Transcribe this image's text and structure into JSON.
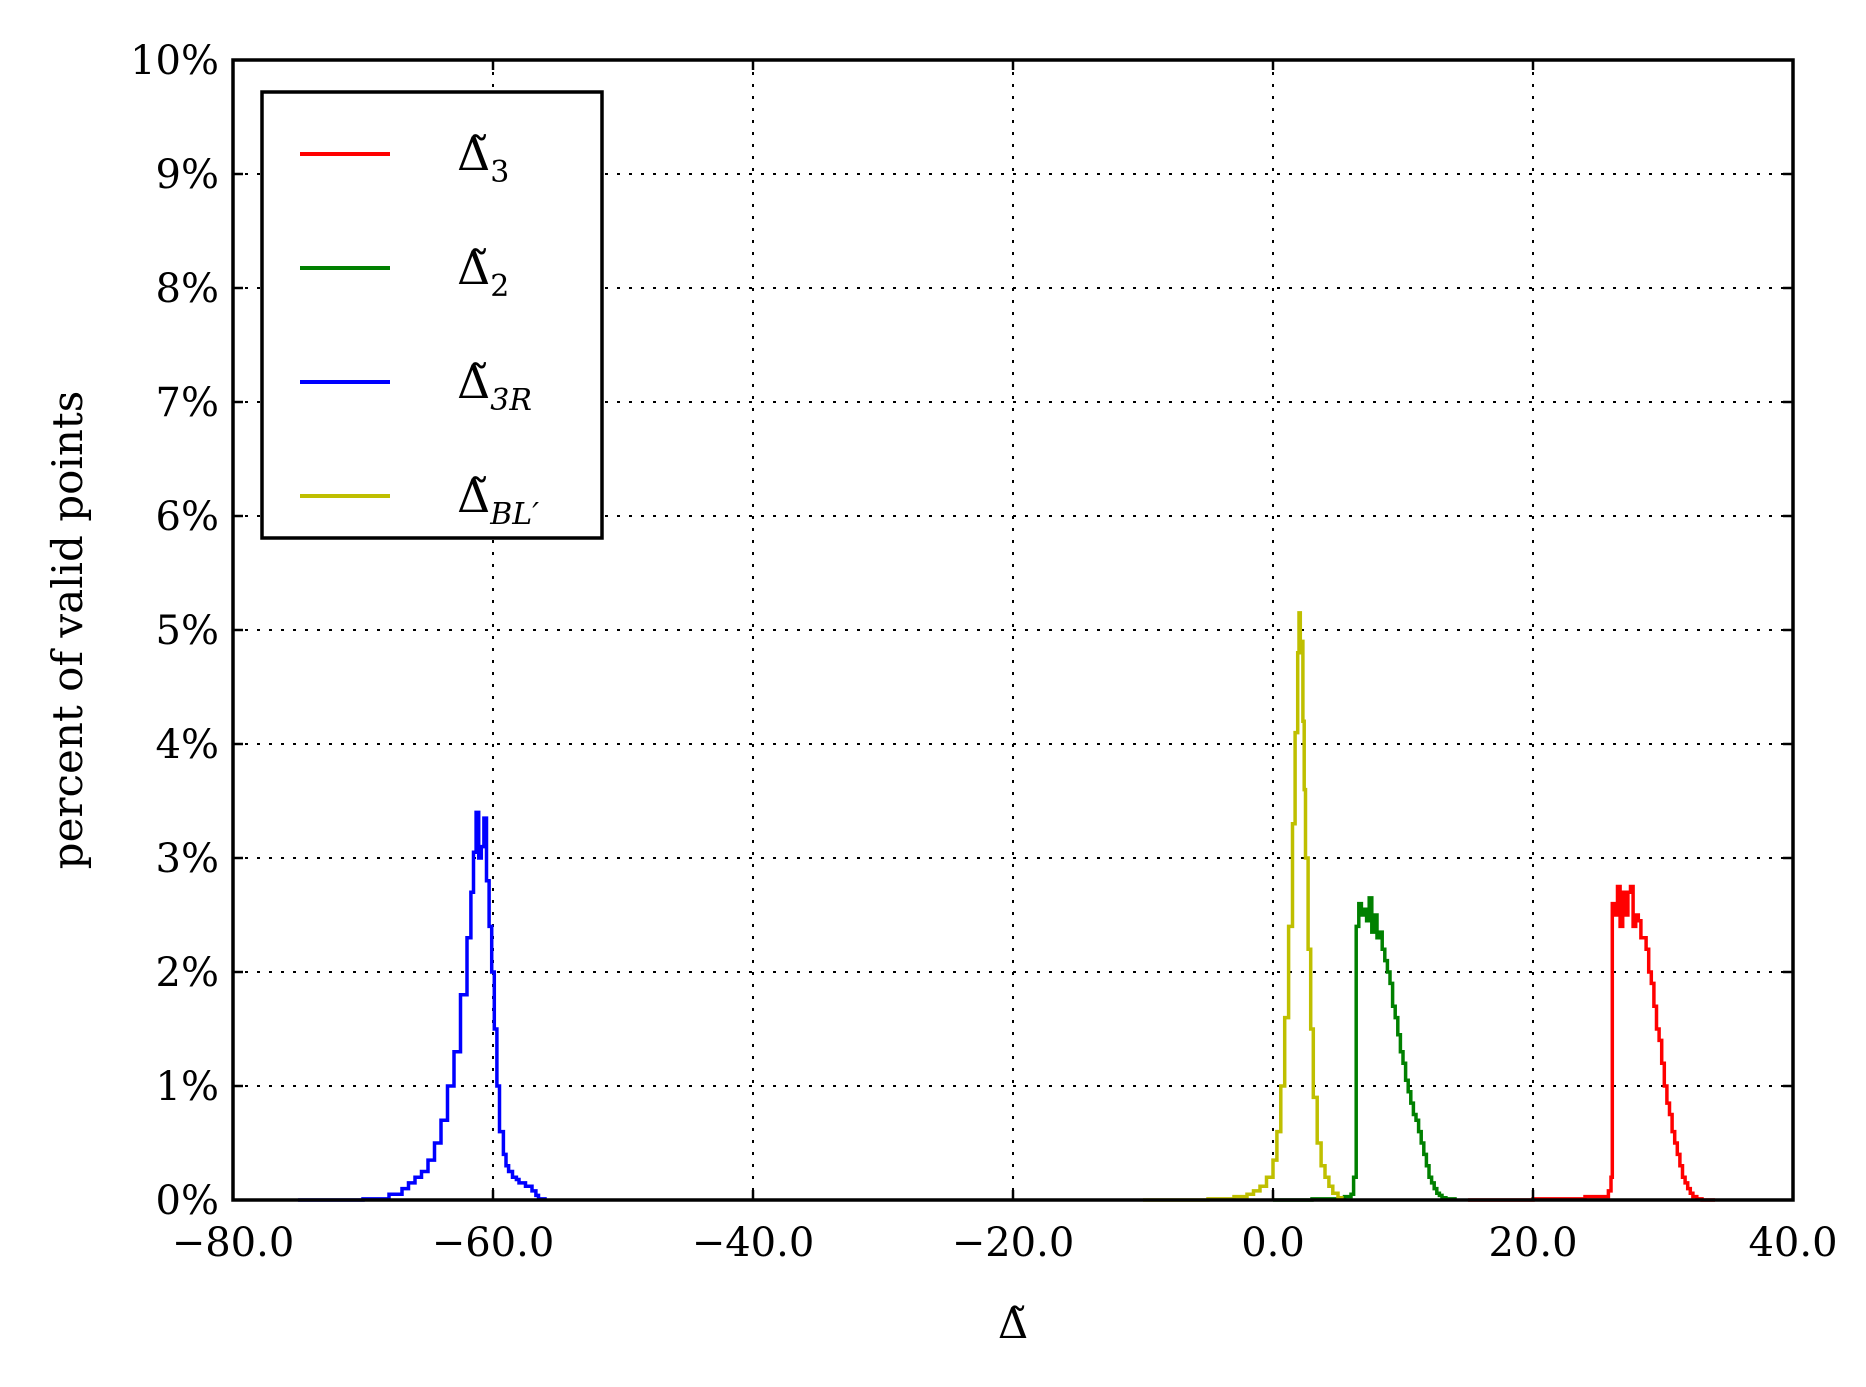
{
  "chart_data": {
    "type": "line",
    "xlabel": "Δ̃",
    "ylabel": "percent of valid points",
    "xlim": [
      -80,
      40
    ],
    "ylim": [
      0,
      10
    ],
    "x_ticks": [
      -80,
      -60,
      -40,
      -20,
      0,
      20,
      40
    ],
    "x_tick_labels": [
      "−80.0",
      "−60.0",
      "−40.0",
      "−20.0",
      "0.0",
      "20.0",
      "40.0"
    ],
    "y_ticks": [
      0,
      1,
      2,
      3,
      4,
      5,
      6,
      7,
      8,
      9,
      10
    ],
    "y_tick_labels": [
      "0%",
      "1%",
      "2%",
      "3%",
      "4%",
      "5%",
      "6%",
      "7%",
      "8%",
      "9%",
      "10%"
    ],
    "grid": true,
    "legend_position": "top-left",
    "series": [
      {
        "name": "Δ̃",
        "subscript": "3",
        "color": "#ff0000",
        "x": [
          15,
          20,
          24,
          25.8,
          26.0,
          26.1,
          26.3,
          26.5,
          26.7,
          26.9,
          27.1,
          27.3,
          27.5,
          27.7,
          27.9,
          28.1,
          28.3,
          28.5,
          28.7,
          28.9,
          29.1,
          29.3,
          29.5,
          29.7,
          29.9,
          30.1,
          30.3,
          30.5,
          30.7,
          30.9,
          31.1,
          31.3,
          31.5,
          31.7,
          31.9,
          32.1,
          32.3,
          32.6,
          33.0,
          34
        ],
        "y": [
          0.0,
          0.01,
          0.03,
          0.08,
          0.2,
          2.6,
          2.5,
          2.75,
          2.4,
          2.7,
          2.5,
          2.7,
          2.75,
          2.4,
          2.5,
          2.45,
          2.3,
          2.3,
          2.2,
          2.0,
          1.9,
          1.7,
          1.5,
          1.4,
          1.2,
          1.0,
          0.85,
          0.75,
          0.6,
          0.5,
          0.4,
          0.3,
          0.2,
          0.15,
          0.1,
          0.06,
          0.03,
          0.01,
          0.0,
          0.0
        ]
      },
      {
        "name": "Δ̃",
        "subscript": "2",
        "color": "#008000",
        "x": [
          0,
          3,
          5.5,
          6.0,
          6.2,
          6.4,
          6.6,
          6.8,
          7.0,
          7.2,
          7.4,
          7.6,
          7.8,
          8.0,
          8.2,
          8.4,
          8.6,
          8.8,
          9.0,
          9.2,
          9.4,
          9.6,
          9.8,
          10.0,
          10.2,
          10.4,
          10.6,
          10.8,
          11.0,
          11.2,
          11.4,
          11.6,
          11.8,
          12.0,
          12.2,
          12.4,
          12.6,
          12.8,
          13.0,
          13.3,
          14
        ],
        "y": [
          0.0,
          0.01,
          0.03,
          0.05,
          0.2,
          2.4,
          2.6,
          2.5,
          2.55,
          2.45,
          2.65,
          2.35,
          2.5,
          2.3,
          2.35,
          2.2,
          2.1,
          2.0,
          1.9,
          1.7,
          1.6,
          1.45,
          1.3,
          1.2,
          1.05,
          0.95,
          0.85,
          0.75,
          0.7,
          0.6,
          0.5,
          0.4,
          0.3,
          0.2,
          0.15,
          0.1,
          0.06,
          0.04,
          0.02,
          0.01,
          0.0
        ]
      },
      {
        "name": "Δ̃",
        "subscript": "3R",
        "color": "#0000ff",
        "x": [
          -75,
          -70,
          -68,
          -67,
          -66.5,
          -66,
          -65.5,
          -65,
          -64.5,
          -64,
          -63.5,
          -63,
          -62.5,
          -62,
          -61.7,
          -61.5,
          -61.3,
          -61.1,
          -60.9,
          -60.7,
          -60.5,
          -60.3,
          -60.1,
          -59.9,
          -59.7,
          -59.5,
          -59.2,
          -59,
          -58.8,
          -58.5,
          -58.2,
          -58,
          -57.5,
          -57,
          -56.7,
          -56.5,
          -56
        ],
        "y": [
          0.0,
          0.01,
          0.05,
          0.1,
          0.15,
          0.2,
          0.25,
          0.35,
          0.5,
          0.7,
          1.0,
          1.3,
          1.8,
          2.3,
          2.7,
          3.05,
          3.4,
          3.0,
          3.1,
          3.35,
          2.8,
          2.4,
          2.0,
          1.5,
          1.0,
          0.6,
          0.4,
          0.3,
          0.25,
          0.2,
          0.18,
          0.15,
          0.12,
          0.08,
          0.04,
          0.01,
          0.0
        ]
      },
      {
        "name": "Δ̃",
        "subscript": "BL′",
        "color": "#bfbf00",
        "x": [
          -10,
          -5,
          -3,
          -2,
          -1.5,
          -1,
          -0.5,
          0,
          0.3,
          0.6,
          0.9,
          1.2,
          1.5,
          1.7,
          1.9,
          2.0,
          2.1,
          2.2,
          2.3,
          2.4,
          2.5,
          2.7,
          2.9,
          3.1,
          3.4,
          3.7,
          4.0,
          4.3,
          4.6,
          5.0,
          5.3
        ],
        "y": [
          0.0,
          0.01,
          0.03,
          0.05,
          0.08,
          0.12,
          0.2,
          0.35,
          0.6,
          1.0,
          1.6,
          2.4,
          3.3,
          4.1,
          4.8,
          5.15,
          4.8,
          4.9,
          4.2,
          3.6,
          3.0,
          2.2,
          1.5,
          0.9,
          0.5,
          0.3,
          0.2,
          0.12,
          0.06,
          0.02,
          0.0
        ]
      }
    ]
  }
}
